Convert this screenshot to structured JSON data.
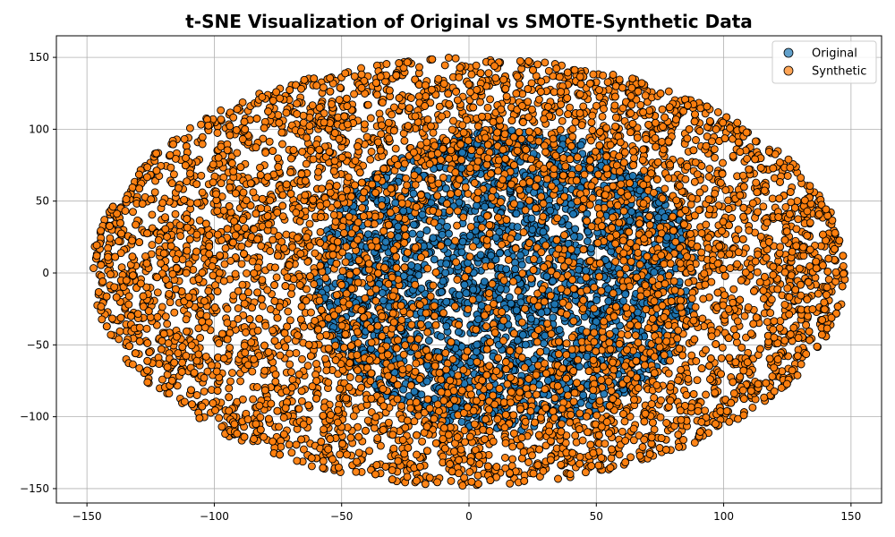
{
  "chart_data": {
    "type": "scatter",
    "title": "t-SNE Visualization of Original vs SMOTE-Synthetic Data",
    "xlabel": "",
    "ylabel": "",
    "xlim": [
      -162,
      162
    ],
    "ylim": [
      -160,
      165
    ],
    "x_ticks": [
      -150,
      -100,
      -50,
      0,
      50,
      100,
      150
    ],
    "y_ticks": [
      -150,
      -100,
      -50,
      0,
      50,
      100,
      150
    ],
    "x_tick_labels": [
      "−150",
      "−100",
      "−50",
      "0",
      "50",
      "100",
      "150"
    ],
    "y_tick_labels": [
      "−150",
      "−100",
      "−50",
      "0",
      "50",
      "100",
      "150"
    ],
    "grid": true,
    "legend_position": "top-right",
    "point_cloud": {
      "shape": "ellipse",
      "x_extent": [
        -148,
        148
      ],
      "y_extent": [
        -148,
        150
      ]
    },
    "series": [
      {
        "name": "Original",
        "color": "#1f77b4",
        "core_x_extent": [
          -60,
          90
        ],
        "core_y_extent": [
          -110,
          100
        ]
      },
      {
        "name": "Synthetic",
        "color": "#ff7f0e"
      }
    ]
  }
}
